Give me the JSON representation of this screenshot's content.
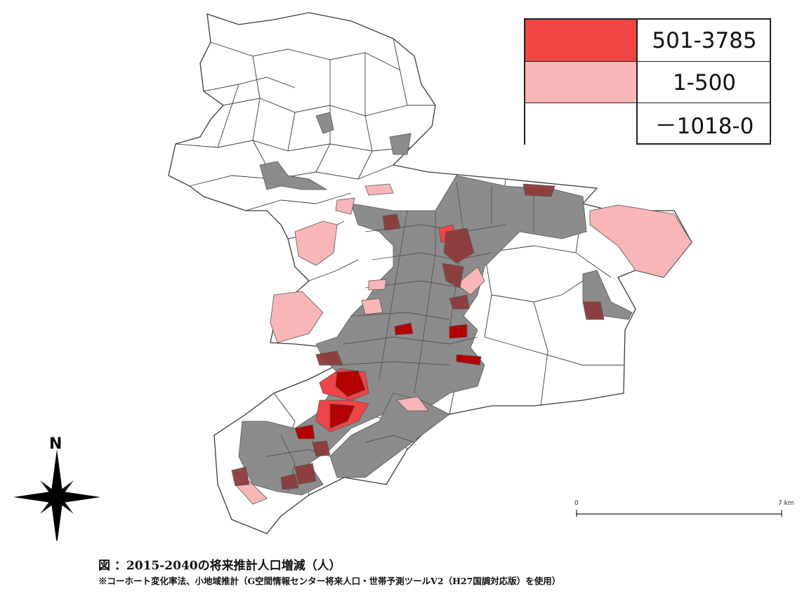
{
  "legend": {
    "items": [
      {
        "label": "501-3785",
        "color": "#f14444"
      },
      {
        "label": "1-500",
        "color": "#f8b6b6"
      },
      {
        "label": "－1018-0",
        "color": "#ffffff"
      }
    ]
  },
  "map_colors": {
    "outline": "#3a3a3a",
    "unchanged_area": "#ffffff",
    "gray_overlay": "#8c8c8c",
    "high": "#f14444",
    "mid": "#f8b6b6",
    "dark_red": "#b40000",
    "overlap_red": "#8e3b3b"
  },
  "north_arrow": {
    "letter": "N",
    "icon": "compass-star-icon"
  },
  "scale_bar": {
    "start_label": "0",
    "end_label": "7 km"
  },
  "caption": "図 ：2015-2040の将来推計人口増減（人）",
  "note": "※コーホート変化率法、小地域推計（G空間情報センター将来人口・世帯予測ツールV2（H27国調対応版）を使用）"
}
